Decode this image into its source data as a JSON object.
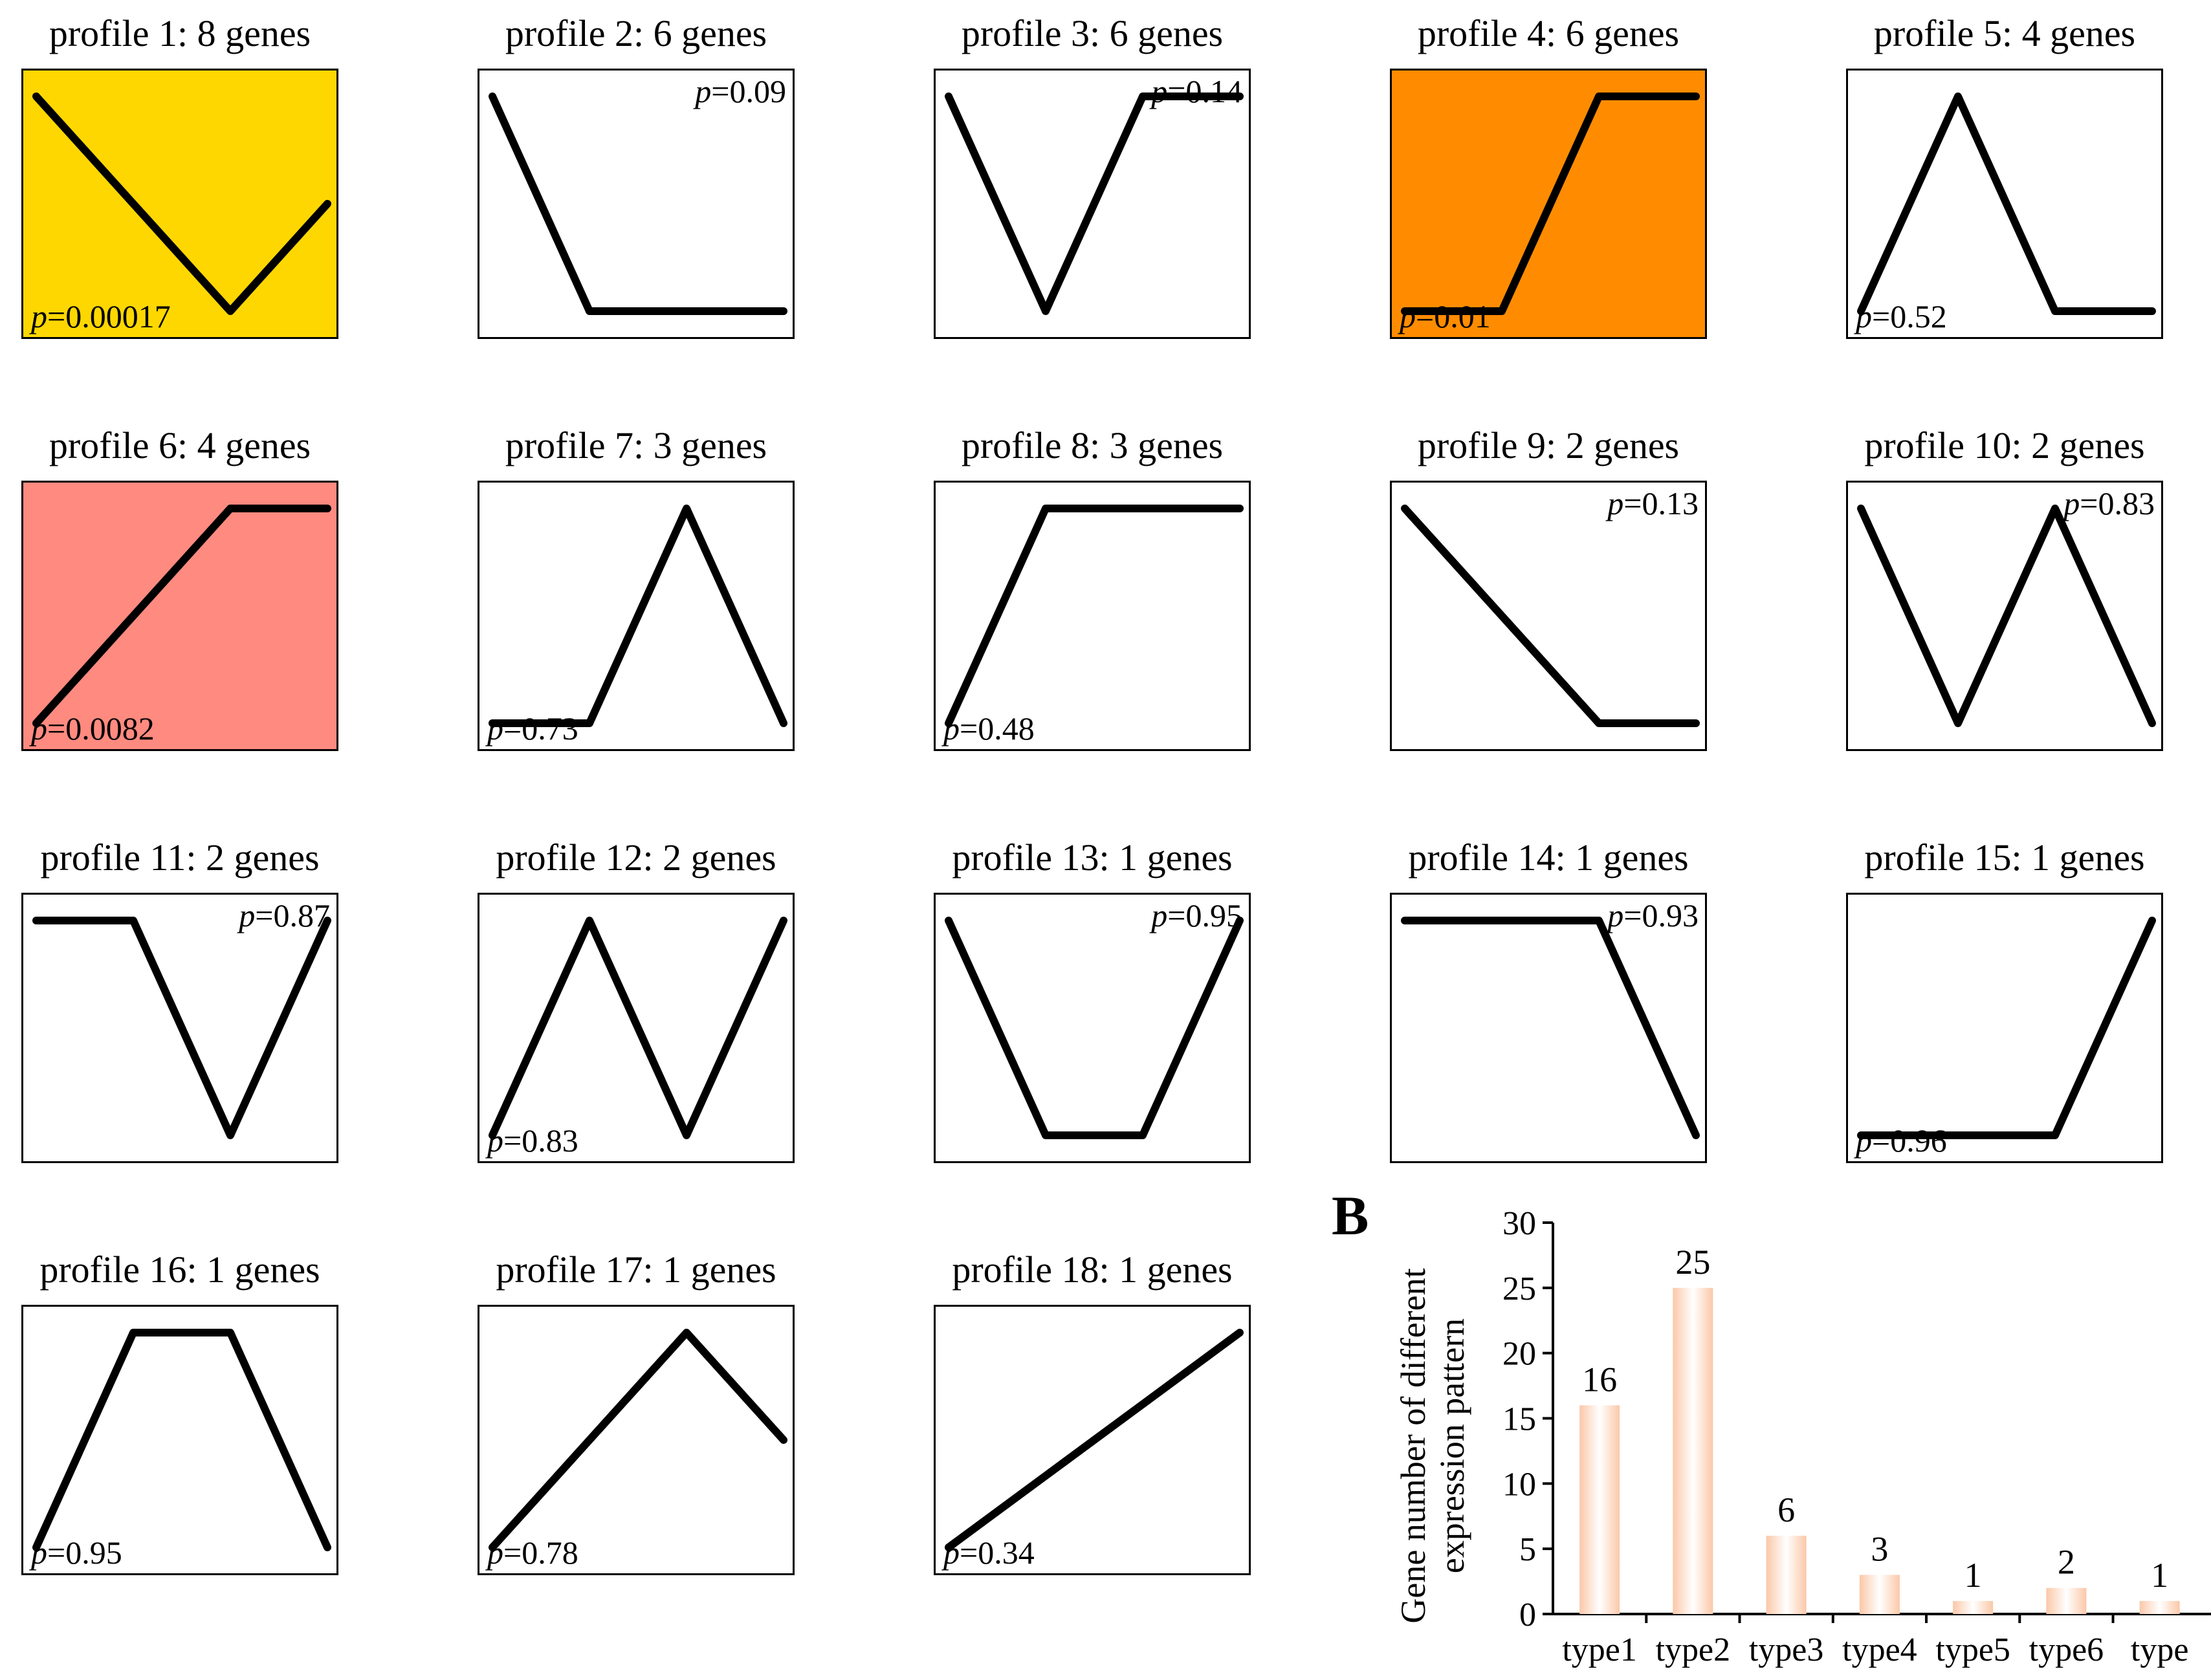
{
  "colors": {
    "yellow": "#FFD700",
    "orange": "#FF8C00",
    "salmon": "#FF8A80",
    "white": "#FFFFFF",
    "bar_gradient_light": "#FFFFFF",
    "bar_gradient_dark": "#FBC8A8"
  },
  "profiles": [
    {
      "id": 1,
      "title": "profile 1: 8 genes",
      "p_prefix": "p",
      "p_value": "=0.00017",
      "p_pos": "bottom-left",
      "bg": "yellow",
      "trend": [
        0,
        -1,
        -2,
        -1
      ]
    },
    {
      "id": 2,
      "title": "profile 2: 6 genes",
      "p_prefix": "p",
      "p_value": "=0.09",
      "p_pos": "top-right",
      "bg": "white",
      "trend": [
        0,
        -1,
        -1,
        -1
      ]
    },
    {
      "id": 3,
      "title": "profile 3: 6 genes",
      "p_prefix": "p",
      "p_value": "=0.14",
      "p_pos": "top-right",
      "bg": "white",
      "trend": [
        0,
        -1,
        0,
        0
      ]
    },
    {
      "id": 4,
      "title": "profile 4: 6 genes",
      "p_prefix": "p",
      "p_value": "=0.01",
      "p_pos": "bottom-left",
      "bg": "orange",
      "trend": [
        0,
        0,
        1,
        1
      ]
    },
    {
      "id": 5,
      "title": "profile 5: 4 genes",
      "p_prefix": "p",
      "p_value": "=0.52",
      "p_pos": "bottom-left",
      "bg": "white",
      "trend": [
        0,
        1,
        0,
        0
      ]
    },
    {
      "id": 6,
      "title": "profile 6: 4 genes",
      "p_prefix": "p",
      "p_value": "=0.0082",
      "p_pos": "bottom-left",
      "bg": "salmon",
      "trend": [
        0,
        1,
        2,
        2
      ]
    },
    {
      "id": 7,
      "title": "profile 7: 3 genes",
      "p_prefix": "p",
      "p_value": "=0.73",
      "p_pos": "bottom-left",
      "bg": "white",
      "trend": [
        0,
        0,
        1,
        0
      ]
    },
    {
      "id": 8,
      "title": "profile 8: 3 genes",
      "p_prefix": "p",
      "p_value": "=0.48",
      "p_pos": "bottom-left",
      "bg": "white",
      "trend": [
        0,
        1,
        1,
        1
      ]
    },
    {
      "id": 9,
      "title": "profile 9: 2 genes",
      "p_prefix": "p",
      "p_value": "=0.13",
      "p_pos": "top-right",
      "bg": "white",
      "trend": [
        0,
        -1,
        -2,
        -2
      ]
    },
    {
      "id": 10,
      "title": "profile 10: 2 genes",
      "p_prefix": "p",
      "p_value": "=0.83",
      "p_pos": "top-right",
      "bg": "white",
      "trend": [
        0,
        -1,
        0,
        -1
      ]
    },
    {
      "id": 11,
      "title": "profile 11: 2 genes",
      "p_prefix": "p",
      "p_value": "=0.87",
      "p_pos": "top-right",
      "bg": "white",
      "trend": [
        0,
        0,
        -1,
        0
      ]
    },
    {
      "id": 12,
      "title": "profile 12: 2 genes",
      "p_prefix": "p",
      "p_value": "=0.83",
      "p_pos": "bottom-left",
      "bg": "white",
      "trend": [
        0,
        1,
        0,
        1
      ]
    },
    {
      "id": 13,
      "title": "profile 13: 1 genes",
      "p_prefix": "p",
      "p_value": "=0.95",
      "p_pos": "top-right",
      "bg": "white",
      "trend": [
        0,
        -1,
        -1,
        0
      ]
    },
    {
      "id": 14,
      "title": "profile 14: 1 genes",
      "p_prefix": "p",
      "p_value": "=0.93",
      "p_pos": "top-right",
      "bg": "white",
      "trend": [
        0,
        0,
        0,
        -1
      ]
    },
    {
      "id": 15,
      "title": "profile 15: 1 genes",
      "p_prefix": "p",
      "p_value": "=0.96",
      "p_pos": "bottom-left",
      "bg": "white",
      "trend": [
        0,
        0,
        0,
        1
      ]
    },
    {
      "id": 16,
      "title": "profile 16: 1 genes",
      "p_prefix": "p",
      "p_value": "=0.95",
      "p_pos": "bottom-left",
      "bg": "white",
      "trend": [
        0,
        1,
        1,
        0
      ]
    },
    {
      "id": 17,
      "title": "profile 17: 1 genes",
      "p_prefix": "p",
      "p_value": "=0.78",
      "p_pos": "bottom-left",
      "bg": "white",
      "trend": [
        0,
        1,
        2,
        1
      ]
    },
    {
      "id": 18,
      "title": "profile 18: 1 genes",
      "p_prefix": "p",
      "p_value": "=0.34",
      "p_pos": "bottom-left",
      "bg": "white",
      "trend": [
        0,
        1,
        2,
        3
      ]
    }
  ],
  "chart_data": {
    "type": "bar",
    "panel_label": "B",
    "title": "",
    "xlabel": "",
    "ylabel_line1": "Gene number of different",
    "ylabel_line2": "expression pattern",
    "ylim": [
      0,
      30
    ],
    "yticks": [
      0,
      5,
      10,
      15,
      20,
      25,
      30
    ],
    "categories": [
      "type1",
      "type2",
      "type3",
      "type4",
      "type5",
      "type6",
      "type"
    ],
    "values": [
      16,
      25,
      6,
      3,
      1,
      2,
      1
    ],
    "data_labels": [
      "16",
      "25",
      "6",
      "3",
      "1",
      "2",
      "1"
    ],
    "legend": "none",
    "grid": false
  }
}
